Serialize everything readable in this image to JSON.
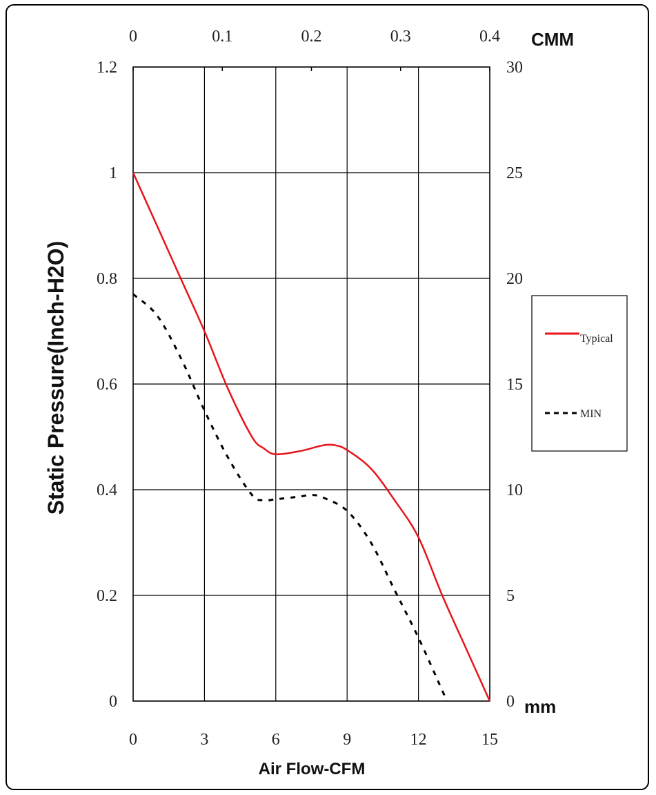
{
  "chart_data": {
    "type": "line",
    "xlabel": "Air Flow-CFM",
    "ylabel": "Static Pressure(Inch-H2O)",
    "x2label": "CMM",
    "y2label": "mm",
    "xlim": [
      0,
      15
    ],
    "ylim": [
      0,
      1.2
    ],
    "x2lim": [
      0,
      0.4
    ],
    "y2lim": [
      0,
      30
    ],
    "x_ticks": [
      "0",
      "3",
      "6",
      "9",
      "12",
      "15"
    ],
    "y_ticks": [
      "0",
      "0.2",
      "0.4",
      "0.6",
      "0.8",
      "1",
      "1.2"
    ],
    "x2_ticks": [
      "0",
      "0.1",
      "0.2",
      "0.3",
      "0.4"
    ],
    "y2_ticks": [
      "0",
      "5",
      "10",
      "15",
      "20",
      "25",
      "30"
    ],
    "grid": true,
    "legend_position": "right",
    "series": [
      {
        "name": "Typical",
        "color": "#e8141a",
        "style": "solid",
        "x": [
          0,
          1,
          2,
          3,
          4,
          5,
          5.5,
          6,
          7,
          8,
          8.5,
          9,
          10,
          11,
          12,
          13,
          14,
          15
        ],
        "y": [
          1.0,
          0.9,
          0.8,
          0.7,
          0.59,
          0.5,
          0.478,
          0.467,
          0.473,
          0.484,
          0.484,
          0.475,
          0.44,
          0.38,
          0.31,
          0.2,
          0.1,
          0.0
        ]
      },
      {
        "name": "MIN",
        "color": "#000000",
        "style": "dashed",
        "x": [
          0,
          1,
          2,
          3,
          4,
          5,
          5.5,
          6,
          7,
          7.5,
          8,
          9,
          10,
          11,
          12,
          13,
          13.2
        ],
        "y": [
          0.77,
          0.73,
          0.65,
          0.55,
          0.46,
          0.39,
          0.38,
          0.382,
          0.387,
          0.39,
          0.385,
          0.36,
          0.3,
          0.21,
          0.12,
          0.02,
          0.0
        ]
      }
    ]
  }
}
